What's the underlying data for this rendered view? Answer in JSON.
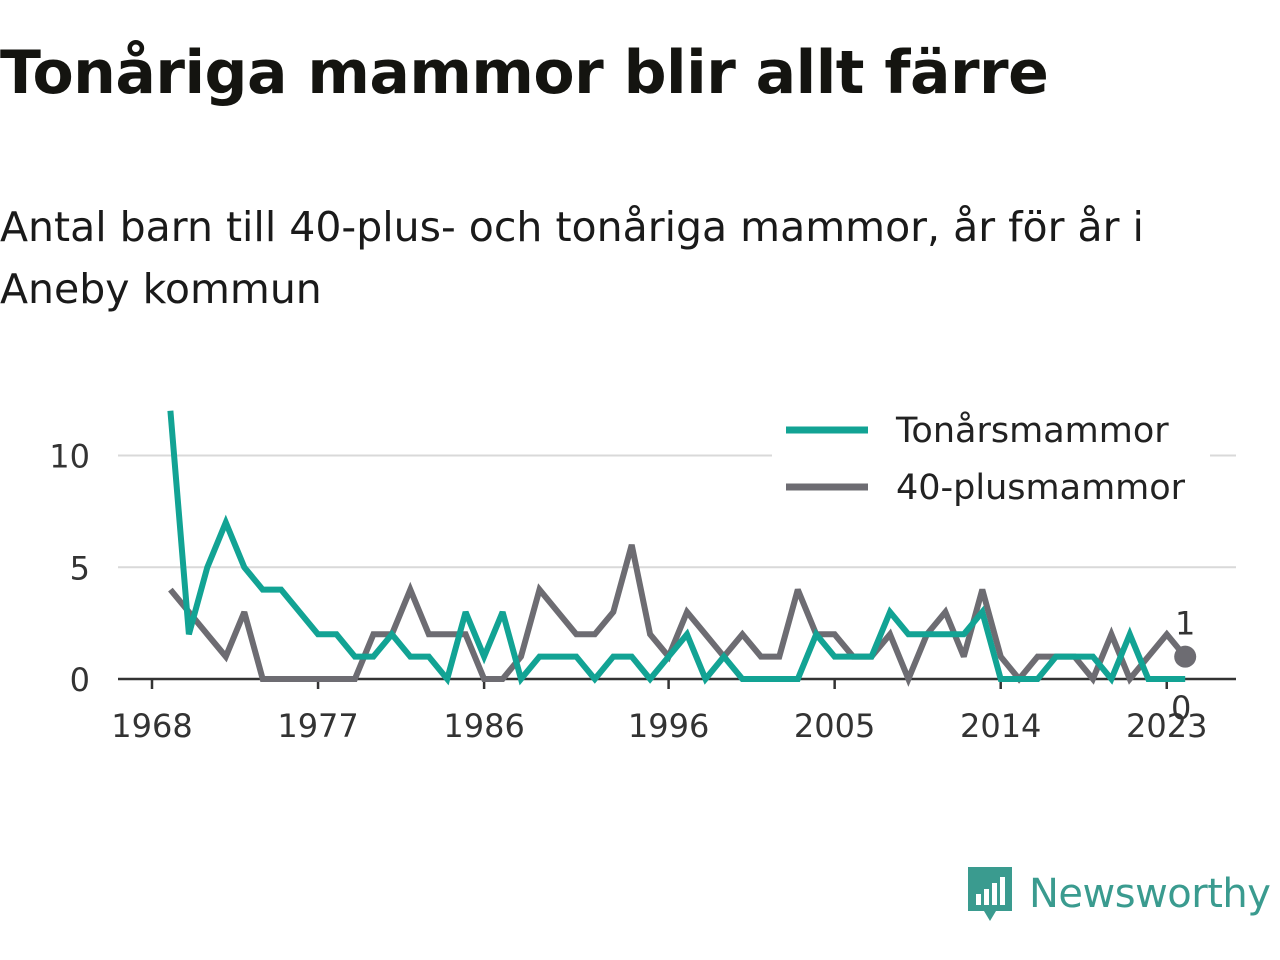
{
  "header": {
    "title": "Tonåriga mammor blir allt färre",
    "subtitle": "Antal barn till 40-plus- och tonåriga mammor, år för år i Aneby kommun"
  },
  "brand": {
    "name": "Newsworthy",
    "icon": "newsworthy-logo-icon",
    "color": "#3a9b8f"
  },
  "chart_data": {
    "type": "line",
    "x": [
      1969,
      1970,
      1971,
      1972,
      1973,
      1974,
      1975,
      1976,
      1977,
      1978,
      1979,
      1980,
      1981,
      1982,
      1983,
      1984,
      1985,
      1986,
      1987,
      1988,
      1989,
      1990,
      1991,
      1992,
      1993,
      1994,
      1995,
      1996,
      1997,
      1998,
      1999,
      2000,
      2001,
      2002,
      2003,
      2004,
      2005,
      2006,
      2007,
      2008,
      2009,
      2010,
      2011,
      2012,
      2013,
      2014,
      2015,
      2016,
      2017,
      2018,
      2019,
      2020,
      2021,
      2022,
      2023,
      2024
    ],
    "series": [
      {
        "name": "Tonårsmammor",
        "color": "#12a394",
        "values": [
          12,
          2,
          5,
          7,
          5,
          4,
          4,
          3,
          2,
          2,
          1,
          1,
          2,
          1,
          1,
          0,
          3,
          1,
          3,
          0,
          1,
          1,
          1,
          0,
          1,
          1,
          0,
          1,
          2,
          0,
          1,
          0,
          0,
          0,
          0,
          2,
          1,
          1,
          1,
          3,
          2,
          2,
          2,
          2,
          3,
          0,
          0,
          0,
          1,
          1,
          1,
          0,
          2,
          0,
          0,
          0
        ]
      },
      {
        "name": "40-plusmammor",
        "color": "#6d6c72",
        "values": [
          4,
          3,
          2,
          1,
          3,
          0,
          0,
          0,
          0,
          0,
          0,
          2,
          2,
          4,
          2,
          2,
          2,
          0,
          0,
          1,
          4,
          3,
          2,
          2,
          3,
          6,
          2,
          1,
          3,
          2,
          1,
          2,
          1,
          1,
          4,
          2,
          2,
          1,
          1,
          2,
          0,
          2,
          3,
          1,
          4,
          1,
          0,
          1,
          1,
          1,
          0,
          2,
          0,
          1,
          2,
          1
        ]
      }
    ],
    "xticks": [
      "1968",
      "1977",
      "1986",
      "1996",
      "2005",
      "2014",
      "2023"
    ],
    "yticks": [
      "0",
      "5",
      "10"
    ],
    "ylim": [
      0,
      12
    ],
    "xlim": [
      1968,
      2025
    ],
    "end_labels": {
      "40-plusmammor": "1",
      "Tonårsmammor": "0"
    },
    "grid": "horizontal",
    "legend_position": "top-right"
  }
}
